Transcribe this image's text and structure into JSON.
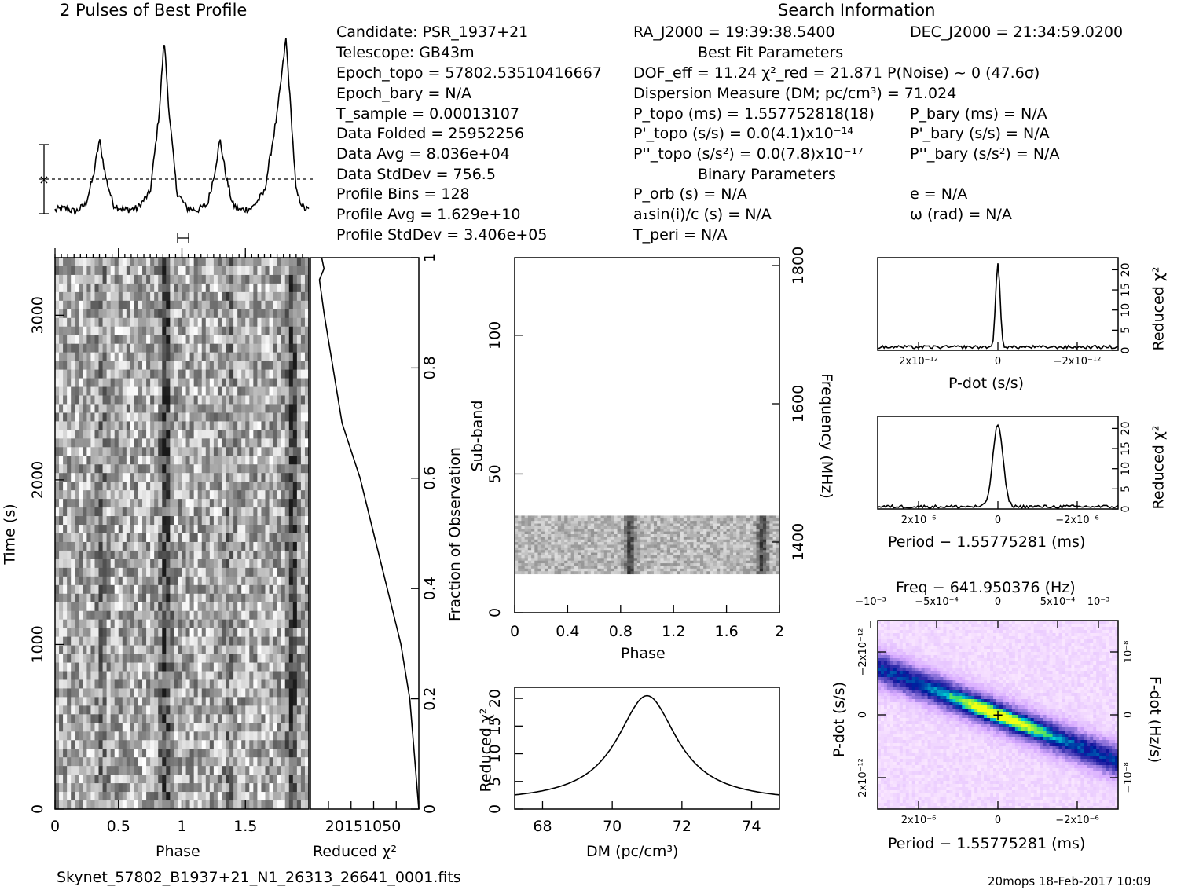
{
  "profile": {
    "title": "2 Pulses of Best Profile"
  },
  "search_info": {
    "title": "Search Information",
    "col1": [
      "Candidate:  PSR_1937+21",
      "Telescope:  GB43m",
      "Epoch_topo = 57802.53510416667",
      "Epoch_bary = N/A",
      "T_sample  =  0.00013107",
      "Data Folded  =  25952256",
      "Data Avg  =  8.036e+04",
      "Data StdDev  =  756.5",
      "Profile Bins  =  128",
      "Profile Avg  =  1.629e+10",
      "Profile StdDev =  3.406e+05"
    ],
    "col2": [
      "RA_J2000 = 19:39:38.5400",
      "Best Fit Parameters",
      "DOF_eff = 11.24  χ²_red = 21.871   P(Noise) ~ 0    (47.6σ)",
      "Dispersion Measure (DM; pc/cm³) = 71.024",
      "P_topo (ms) =  1.557752818(18)",
      "P'_topo (s/s) = 0.0(4.1)x10⁻¹⁴",
      "P''_topo (s/s²) = 0.0(7.8)x10⁻¹⁷",
      "Binary Parameters",
      "P_orb (s) = N/A",
      "a₁sin(i)/c (s) = N/A",
      "T_peri = N/A"
    ],
    "col3": [
      "DEC_J2000 = 21:34:59.0200",
      "P_bary (ms) = N/A",
      "P'_bary (s/s) = N/A",
      "P''_bary (s/s²) = N/A",
      "e = N/A",
      "ω (rad) = N/A"
    ]
  },
  "labels": {
    "phase": "Phase",
    "time": "Time (s)",
    "reduced_chi2": "Reduced χ²",
    "fraction_obs": "Fraction of Observation",
    "subband": "Sub-band",
    "frequency": "Frequency (MHz)",
    "dm": "DM (pc/cm³)",
    "pdot": "P-dot (s/s)",
    "period": "Period − 1.55775281 (ms)",
    "freq": "Freq − 641.950376 (Hz)",
    "fdot": "F-dot (Hz/s)"
  },
  "footer": {
    "filename": "Skynet_57802_B1937+21_N1_26313_26641_0001.fits",
    "stamp": "20mops 18-Feb-2017 10:09"
  },
  "chart_data": [
    {
      "type": "line",
      "name": "profile",
      "x_phase": [
        0,
        0.08,
        0.16,
        0.24,
        0.3,
        0.35,
        0.4,
        0.46,
        0.55,
        0.65,
        0.75,
        0.82,
        0.86,
        0.9,
        0.96,
        1.04,
        1.12,
        1.2,
        1.25,
        1.3,
        1.35,
        1.4,
        1.46,
        1.55,
        1.65,
        1.75,
        1.82,
        1.86,
        1.9,
        1.96,
        2.0
      ],
      "y_rel": [
        0.02,
        0.03,
        0.01,
        0.05,
        0.2,
        0.41,
        0.2,
        0.05,
        0.02,
        0.03,
        0.12,
        0.55,
        0.97,
        0.55,
        0.12,
        0.03,
        0.02,
        0.05,
        0.2,
        0.41,
        0.2,
        0.05,
        0.02,
        0.03,
        0.12,
        0.55,
        0.97,
        0.55,
        0.12,
        0.03,
        0.02
      ]
    },
    {
      "type": "heatmap",
      "name": "time-phase",
      "xlabel": "Phase",
      "ylabel": "Time (s)",
      "xlim": [
        0,
        2
      ],
      "ylim": [
        0,
        3350
      ],
      "xticks": [
        0,
        0.5,
        1,
        1.5
      ],
      "yticks": [
        0,
        1000,
        2000,
        3000
      ]
    },
    {
      "type": "line",
      "name": "cumulative-chi2",
      "xlabel": "Reduced χ²",
      "xticks": [
        20,
        15,
        10,
        5,
        0
      ],
      "x_chi2": [
        0,
        0.5,
        1,
        2,
        4,
        7,
        10,
        13,
        15,
        17,
        19,
        20,
        21,
        21.5,
        22,
        21,
        21.5
      ],
      "y_fraction": [
        0,
        0.05,
        0.1,
        0.2,
        0.3,
        0.4,
        0.5,
        0.6,
        0.65,
        0.7,
        0.8,
        0.85,
        0.9,
        0.93,
        0.96,
        0.98,
        1.0
      ],
      "y2label": "Fraction of Observation",
      "y2ticks": [
        0,
        0.2,
        0.4,
        0.6,
        0.8,
        1
      ]
    },
    {
      "type": "heatmap",
      "name": "subband-phase",
      "xlabel": "Phase",
      "ylabel": "Sub-band",
      "xlim": [
        0,
        2
      ],
      "ylim": [
        0,
        128
      ],
      "xticks": [
        0,
        0.4,
        0.8,
        1.2,
        1.6,
        2
      ],
      "yticks": [
        0,
        50,
        100
      ],
      "filled_subbands": [
        14,
        35
      ],
      "y2label": "Frequency (MHz)",
      "y2ticks": [
        1400,
        1600,
        1800
      ]
    },
    {
      "type": "line",
      "name": "dm-chi2",
      "xlabel": "DM (pc/cm³)",
      "ylabel": "Reduced χ²",
      "xlim": [
        67.2,
        74.8
      ],
      "ylim": [
        0,
        22
      ],
      "xticks": [
        68,
        70,
        72,
        74
      ],
      "yticks": [
        0,
        5,
        10,
        15,
        20
      ],
      "peak_dm": 71.0,
      "peak_chi2": 20.5,
      "base_chi2": 1.2
    },
    {
      "type": "line",
      "name": "pdot-chi2",
      "xlabel": "P-dot (s/s)",
      "ylabel": "Reduced χ²",
      "xlim": [
        3e-12,
        -3e-12
      ],
      "ylim": [
        0,
        23
      ],
      "xtick_labels": [
        "2x10⁻¹²",
        "0",
        "−2x10⁻¹²"
      ],
      "yticks": [
        0,
        5,
        10,
        15,
        20
      ],
      "peak_chi2": 21.5,
      "base_chi2": 0.8
    },
    {
      "type": "line",
      "name": "period-chi2",
      "xlabel": "Period − 1.55775281 (ms)",
      "ylabel": "Reduced χ²",
      "xlim": [
        3e-06,
        -3e-06
      ],
      "ylim": [
        0,
        23
      ],
      "xtick_labels": [
        "2x10⁻⁶",
        "0",
        "−2x10⁻⁶"
      ],
      "yticks": [
        0,
        5,
        10,
        15,
        20
      ],
      "peak_chi2": 21.0,
      "base_chi2": 0.6
    },
    {
      "type": "heatmap",
      "name": "period-pdot",
      "xlabel": "Period − 1.55775281 (ms)",
      "ylabel": "P-dot (s/s)",
      "x2label": "Freq − 641.950376 (Hz)",
      "y2label": "F-dot (Hz/s)",
      "xtick_labels": [
        "2x10⁻⁶",
        "0",
        "−2x10⁻⁶"
      ],
      "ytick_labels": [
        "2x10⁻¹²",
        "0",
        "−2x10⁻¹²"
      ],
      "x2tick_labels": [
        "−10⁻³",
        "−5x10⁻⁴",
        "0",
        "5x10⁻⁴",
        "10⁻³"
      ],
      "y2tick_labels": [
        "−10⁻⁸",
        "0",
        "10⁻⁸"
      ]
    }
  ]
}
